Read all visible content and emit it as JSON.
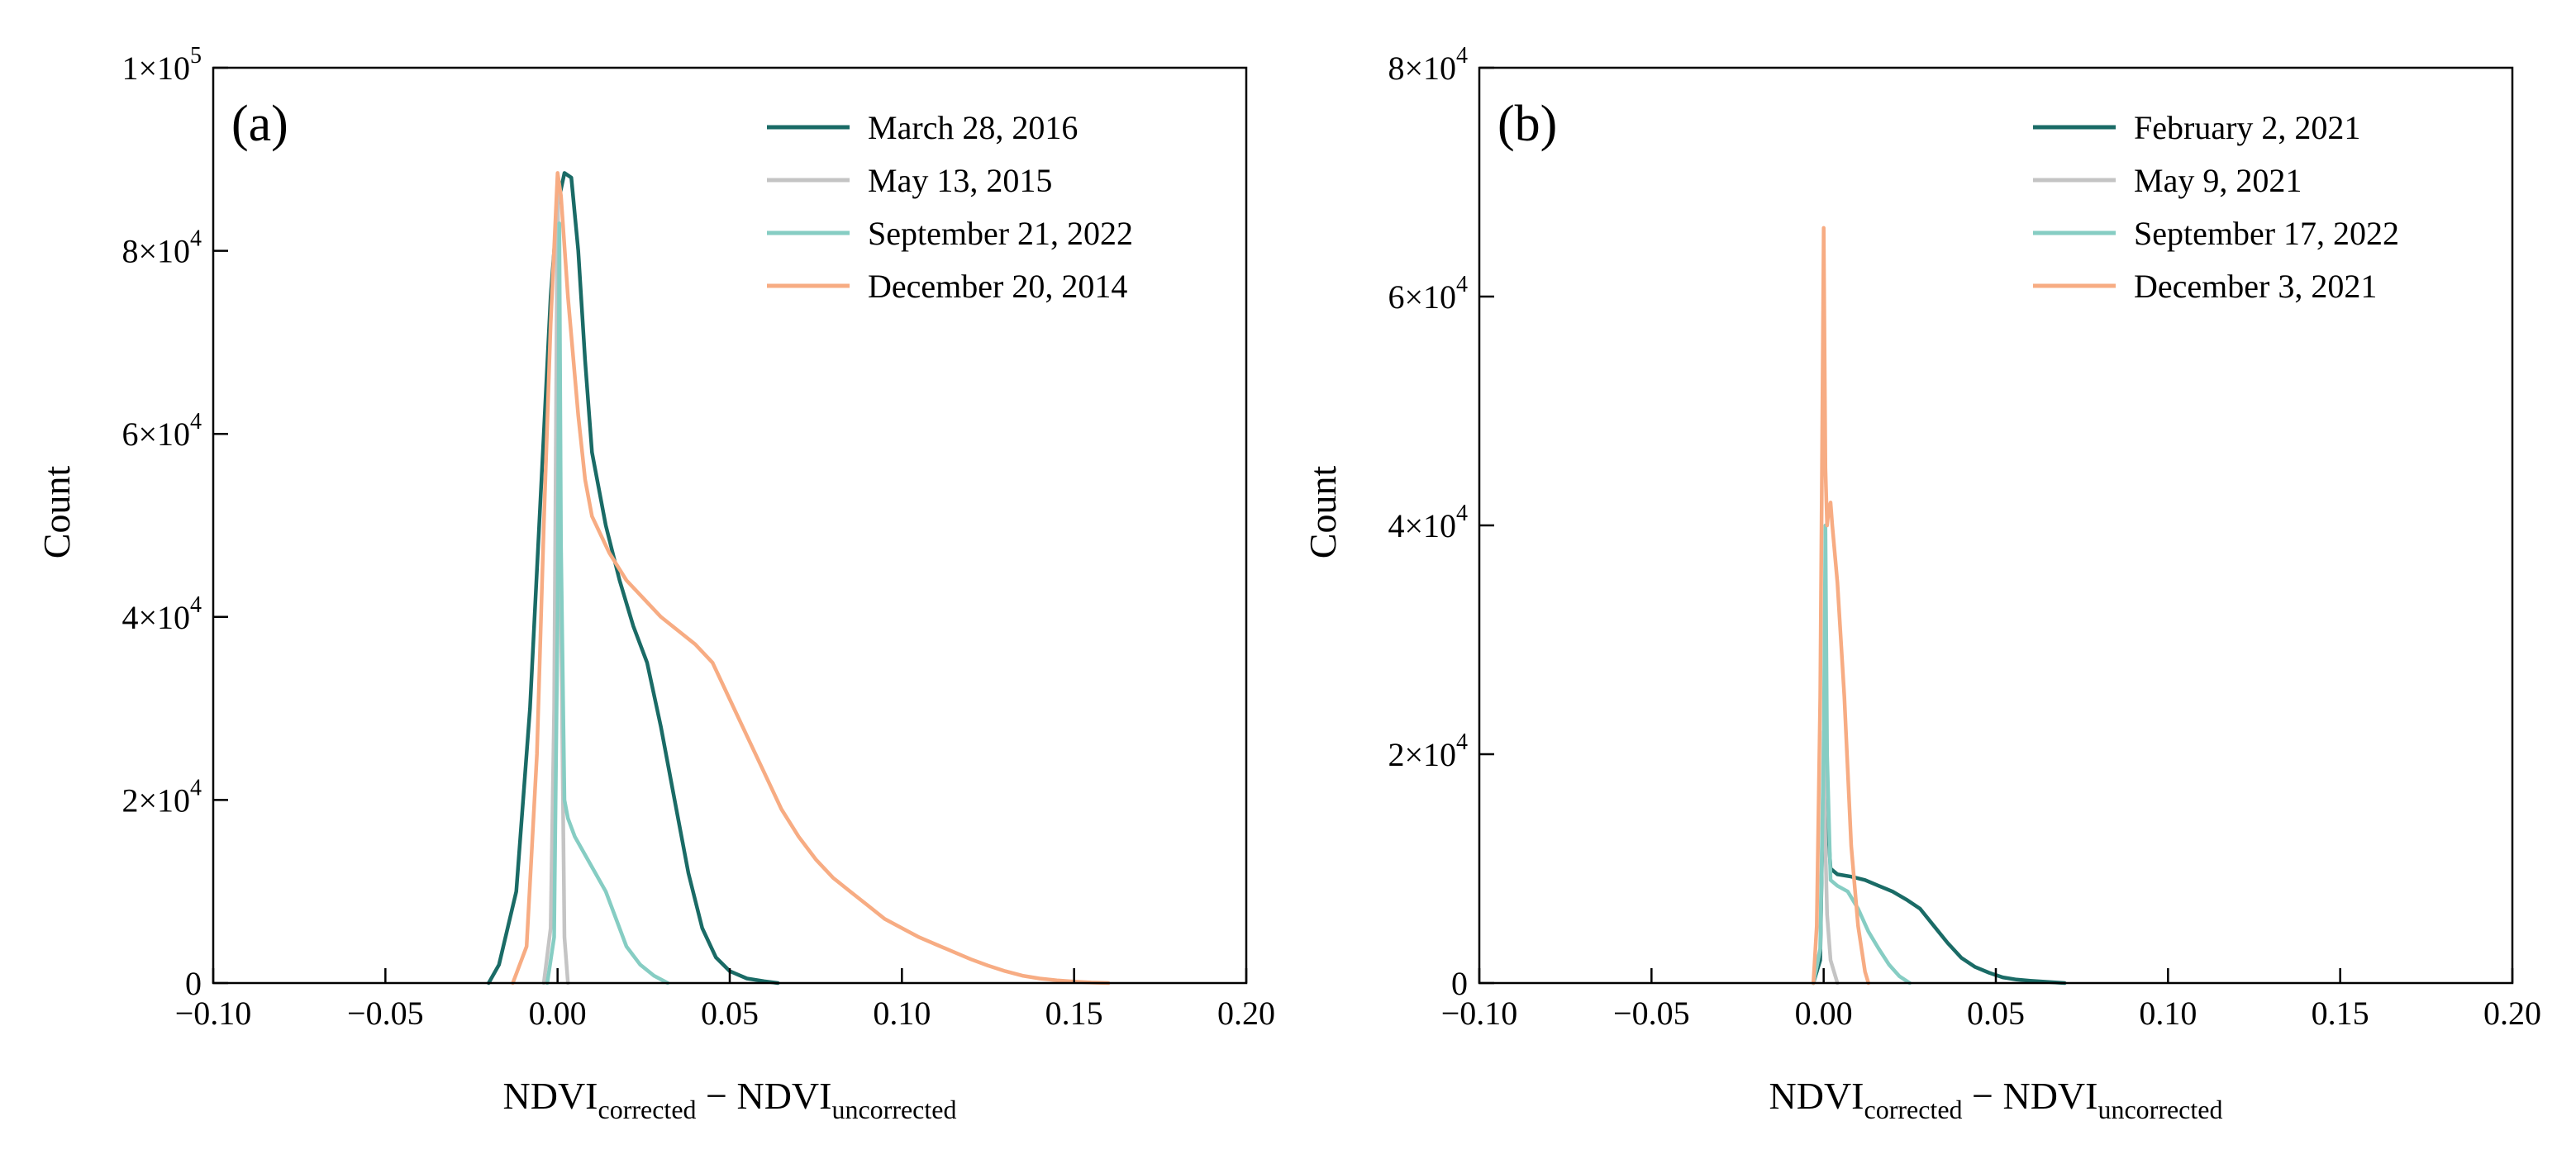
{
  "chart_data": [
    {
      "type": "line",
      "panel_label": "(a)",
      "xlabel": {
        "main": "NDVI",
        "sub1": "corrected",
        "operator": "−",
        "main2": "NDVI",
        "sub2": "uncorrected"
      },
      "ylabel": "Count",
      "xlim": [
        -0.1,
        0.2
      ],
      "ylim": [
        0,
        100000
      ],
      "xticks": [
        {
          "value": -0.1,
          "label": "−0.10"
        },
        {
          "value": -0.05,
          "label": "−0.05"
        },
        {
          "value": 0.0,
          "label": "0.00"
        },
        {
          "value": 0.05,
          "label": "0.05"
        },
        {
          "value": 0.1,
          "label": "0.10"
        },
        {
          "value": 0.15,
          "label": "0.15"
        },
        {
          "value": 0.2,
          "label": "0.20"
        }
      ],
      "yticks": [
        {
          "value": 0,
          "mant": "0",
          "exp": ""
        },
        {
          "value": 20000,
          "mant": "2×10",
          "exp": "4"
        },
        {
          "value": 40000,
          "mant": "4×10",
          "exp": "4"
        },
        {
          "value": 60000,
          "mant": "6×10",
          "exp": "4"
        },
        {
          "value": 80000,
          "mant": "8×10",
          "exp": "4"
        },
        {
          "value": 100000,
          "mant": "1×10",
          "exp": "5"
        }
      ],
      "legend_position": "top-right",
      "series": [
        {
          "name": "March 28, 2016",
          "color": "#1a6b66",
          "x": [
            -0.02,
            -0.017,
            -0.012,
            -0.008,
            -0.004,
            -0.002,
            0.0,
            0.002,
            0.004,
            0.006,
            0.008,
            0.01,
            0.014,
            0.018,
            0.022,
            0.026,
            0.03,
            0.034,
            0.038,
            0.042,
            0.046,
            0.05,
            0.055,
            0.06,
            0.064
          ],
          "y": [
            0,
            2000,
            10000,
            30000,
            60000,
            75000,
            85000,
            88500,
            88000,
            80000,
            68000,
            58000,
            50000,
            44000,
            39000,
            35000,
            28000,
            20000,
            12000,
            6000,
            2800,
            1300,
            500,
            200,
            0
          ]
        },
        {
          "name": "May 13, 2015",
          "color": "#c4c4c4",
          "x": [
            -0.004,
            -0.002,
            -0.001,
            0.0,
            0.0005,
            0.001,
            0.002,
            0.003
          ],
          "y": [
            0,
            6000,
            30000,
            88000,
            70000,
            40000,
            5000,
            0
          ]
        },
        {
          "name": "September 21, 2022",
          "color": "#86cdc3",
          "x": [
            -0.003,
            -0.001,
            0.0,
            0.0005,
            0.001,
            0.002,
            0.003,
            0.005,
            0.008,
            0.011,
            0.014,
            0.017,
            0.02,
            0.024,
            0.028,
            0.032
          ],
          "y": [
            0,
            5000,
            40000,
            83000,
            48000,
            20000,
            18000,
            16000,
            14000,
            12000,
            10000,
            7000,
            4000,
            2000,
            800,
            0
          ]
        },
        {
          "name": "December 20, 2014",
          "color": "#f7ac83",
          "x": [
            -0.013,
            -0.009,
            -0.006,
            -0.004,
            -0.002,
            0.0,
            0.001,
            0.003,
            0.006,
            0.008,
            0.01,
            0.015,
            0.02,
            0.025,
            0.03,
            0.035,
            0.04,
            0.045,
            0.05,
            0.055,
            0.06,
            0.065,
            0.07,
            0.075,
            0.08,
            0.085,
            0.09,
            0.095,
            0.1,
            0.105,
            0.11,
            0.115,
            0.12,
            0.125,
            0.13,
            0.135,
            0.14,
            0.145,
            0.15,
            0.155,
            0.16
          ],
          "y": [
            0,
            4000,
            25000,
            50000,
            72000,
            88500,
            86000,
            75000,
            62000,
            55000,
            51000,
            47000,
            44000,
            42000,
            40000,
            38500,
            37000,
            35000,
            31000,
            27000,
            23000,
            19000,
            16000,
            13500,
            11500,
            10000,
            8500,
            7000,
            6000,
            5000,
            4200,
            3400,
            2600,
            1900,
            1300,
            800,
            500,
            300,
            150,
            50,
            0
          ]
        }
      ]
    },
    {
      "type": "line",
      "panel_label": "(b)",
      "xlabel": {
        "main": "NDVI",
        "sub1": "corrected",
        "operator": "−",
        "main2": "NDVI",
        "sub2": "uncorrected"
      },
      "ylabel": "Count",
      "xlim": [
        -0.1,
        0.2
      ],
      "ylim": [
        0,
        80000
      ],
      "xticks": [
        {
          "value": -0.1,
          "label": "−0.10"
        },
        {
          "value": -0.05,
          "label": "−0.05"
        },
        {
          "value": 0.0,
          "label": "0.00"
        },
        {
          "value": 0.05,
          "label": "0.05"
        },
        {
          "value": 0.1,
          "label": "0.10"
        },
        {
          "value": 0.15,
          "label": "0.15"
        },
        {
          "value": 0.2,
          "label": "0.20"
        }
      ],
      "yticks": [
        {
          "value": 0,
          "mant": "0",
          "exp": ""
        },
        {
          "value": 20000,
          "mant": "2×10",
          "exp": "4"
        },
        {
          "value": 40000,
          "mant": "4×10",
          "exp": "4"
        },
        {
          "value": 60000,
          "mant": "6×10",
          "exp": "4"
        },
        {
          "value": 80000,
          "mant": "8×10",
          "exp": "4"
        }
      ],
      "legend_position": "top-right",
      "series": [
        {
          "name": "February 2, 2021",
          "color": "#1a6b66",
          "x": [
            -0.003,
            -0.001,
            0.0,
            0.0005,
            0.001,
            0.002,
            0.004,
            0.008,
            0.012,
            0.016,
            0.02,
            0.024,
            0.028,
            0.032,
            0.036,
            0.04,
            0.044,
            0.048,
            0.052,
            0.056,
            0.06,
            0.065,
            0.07
          ],
          "y": [
            0,
            2000,
            20000,
            25000,
            15000,
            10000,
            9500,
            9300,
            9000,
            8500,
            8000,
            7300,
            6500,
            5000,
            3500,
            2200,
            1400,
            900,
            500,
            300,
            200,
            100,
            0
          ]
        },
        {
          "name": "May 9, 2021",
          "color": "#c4c4c4",
          "x": [
            -0.003,
            -0.001,
            0.0,
            0.0005,
            0.001,
            0.002,
            0.004
          ],
          "y": [
            0,
            3000,
            22000,
            12000,
            6000,
            2000,
            0
          ]
        },
        {
          "name": "September 17, 2022",
          "color": "#86cdc3",
          "x": [
            -0.003,
            -0.001,
            0.0,
            0.0005,
            0.001,
            0.002,
            0.004,
            0.007,
            0.01,
            0.013,
            0.016,
            0.019,
            0.022,
            0.025
          ],
          "y": [
            0,
            3000,
            20000,
            40000,
            20000,
            9000,
            8500,
            8000,
            6500,
            4500,
            3000,
            1600,
            600,
            0
          ]
        },
        {
          "name": "December 3, 2021",
          "color": "#f7ac83",
          "x": [
            -0.003,
            -0.002,
            -0.001,
            -0.0005,
            0.0,
            0.0005,
            0.001,
            0.0015,
            0.002,
            0.0025,
            0.004,
            0.006,
            0.008,
            0.01,
            0.012,
            0.013
          ],
          "y": [
            0,
            5000,
            25000,
            45000,
            66000,
            45000,
            40000,
            41500,
            42000,
            40000,
            35000,
            25000,
            12000,
            5000,
            1000,
            0
          ]
        }
      ]
    }
  ]
}
